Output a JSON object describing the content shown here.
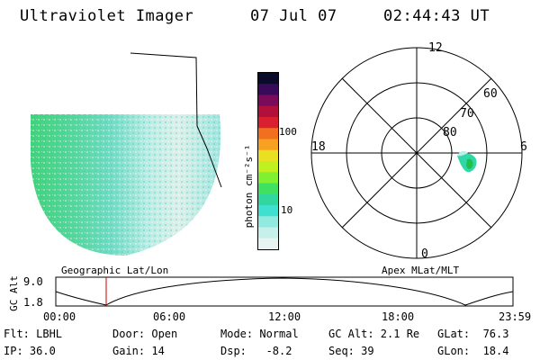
{
  "header": {
    "instrument": "Ultraviolet Imager",
    "date": "07 Jul 07",
    "time": "02:44:43 UT"
  },
  "colorbar": {
    "unit_label": "photon cm⁻²s⁻¹",
    "ticks": [
      "100",
      "10"
    ],
    "scale": "log",
    "colors": [
      "#0a0a2a",
      "#3a0a5a",
      "#7a0a5a",
      "#b0103a",
      "#d82030",
      "#f07020",
      "#f8a020",
      "#e8e020",
      "#c0f020",
      "#80f030",
      "#40e060",
      "#30d8a0",
      "#40e0d0",
      "#90eae0",
      "#c8f0ea",
      "#e8f4f2"
    ]
  },
  "polar": {
    "mlt_labels": [
      "12",
      "18",
      "6",
      "0"
    ],
    "mlat_labels": [
      "60",
      "70",
      "80"
    ]
  },
  "track": {
    "left_title": "Geographic Lat/Lon",
    "right_title": "Apex MLat/MLT",
    "y_axis_label": "GC Alt",
    "y_ticks": [
      "9.0",
      "1.8"
    ],
    "x_ticks": [
      "00:00",
      "06:00",
      "12:00",
      "18:00",
      "23:59"
    ],
    "marker_color": "#cc0000"
  },
  "info": {
    "flt": "Flt: LBHL",
    "ip": "IP: 36.0",
    "door": "Door: Open",
    "gain": "Gain: 14",
    "mode": "Mode: Normal",
    "dsp": "Dsp:   -8.2",
    "gcalt": "GC Alt: 2.1 Re",
    "seq": "Seq: 39",
    "glat": "GLat:  76.3",
    "glon": "GLon:  18.4"
  }
}
